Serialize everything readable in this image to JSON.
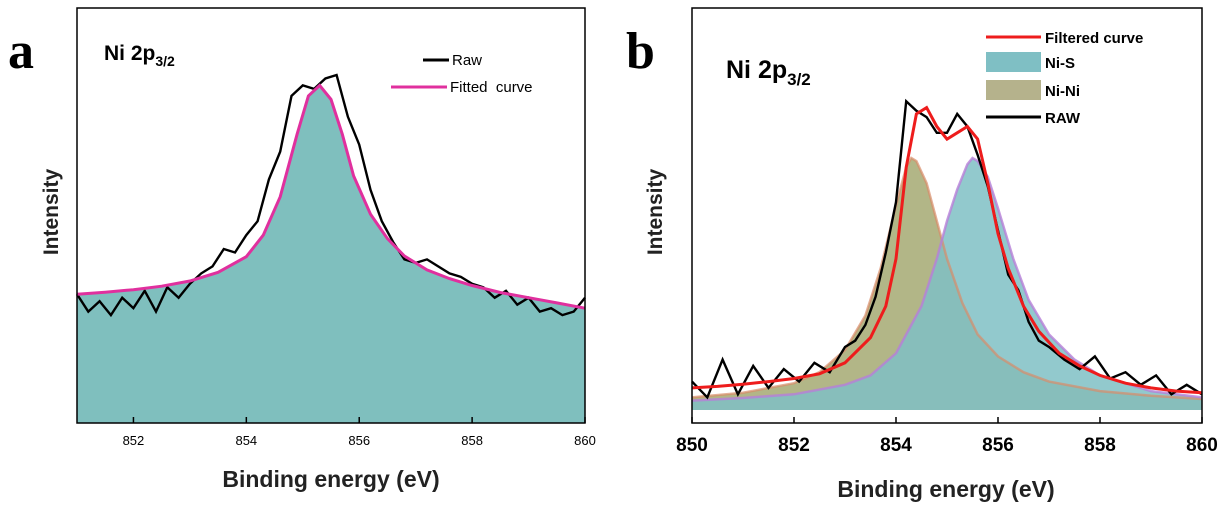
{
  "chart_data": [
    {
      "panel": "a",
      "type": "line",
      "title": "Ni 2p",
      "title_sub": "3/2",
      "xlabel": "Binding energy (eV)",
      "ylabel": "Intensity",
      "xlim": [
        851,
        860
      ],
      "ylim": [
        0,
        1
      ],
      "xticks": [
        852,
        854,
        856,
        858,
        860
      ],
      "legend_position": "top-right",
      "fill_color": "#7fbfbe",
      "series": [
        {
          "name": "Raw",
          "color": "#000000",
          "x": [
            851.0,
            851.2,
            851.4,
            851.6,
            851.8,
            852.0,
            852.2,
            852.4,
            852.6,
            852.8,
            853.0,
            853.2,
            853.4,
            853.6,
            853.8,
            854.0,
            854.2,
            854.4,
            854.6,
            854.8,
            855.0,
            855.2,
            855.4,
            855.6,
            855.8,
            856.0,
            856.2,
            856.4,
            856.6,
            856.8,
            857.0,
            857.2,
            857.4,
            857.6,
            857.8,
            858.0,
            858.2,
            858.4,
            858.6,
            858.8,
            859.0,
            859.2,
            859.4,
            859.6,
            859.8,
            860.0
          ],
          "y": [
            0.37,
            0.32,
            0.35,
            0.31,
            0.36,
            0.33,
            0.38,
            0.32,
            0.39,
            0.36,
            0.4,
            0.43,
            0.45,
            0.5,
            0.49,
            0.54,
            0.58,
            0.7,
            0.78,
            0.94,
            0.97,
            0.96,
            0.99,
            1.0,
            0.88,
            0.8,
            0.67,
            0.58,
            0.52,
            0.47,
            0.46,
            0.47,
            0.45,
            0.43,
            0.42,
            0.4,
            0.39,
            0.36,
            0.38,
            0.34,
            0.36,
            0.32,
            0.33,
            0.31,
            0.32,
            0.36
          ]
        },
        {
          "name": "Fitted  curve",
          "color": "#e0309e",
          "x": [
            851.0,
            851.5,
            852.0,
            852.5,
            853.0,
            853.5,
            854.0,
            854.3,
            854.6,
            854.9,
            855.1,
            855.3,
            855.5,
            855.7,
            855.9,
            856.2,
            856.5,
            856.8,
            857.2,
            857.6,
            858.0,
            858.5,
            859.0,
            859.5,
            860.0
          ],
          "y": [
            0.37,
            0.376,
            0.383,
            0.393,
            0.408,
            0.433,
            0.478,
            0.54,
            0.65,
            0.83,
            0.94,
            0.97,
            0.93,
            0.83,
            0.71,
            0.6,
            0.53,
            0.48,
            0.44,
            0.415,
            0.395,
            0.375,
            0.36,
            0.345,
            0.33
          ]
        }
      ]
    },
    {
      "panel": "b",
      "type": "line",
      "title": "Ni 2p",
      "title_sub": "3/2",
      "xlabel": "Binding energy (eV)",
      "ylabel": "Intensity",
      "xlim": [
        850,
        860
      ],
      "ylim": [
        0,
        1
      ],
      "xticks": [
        850,
        852,
        854,
        856,
        858,
        860
      ],
      "legend_position": "top-right",
      "baseline_fill_color": "#9ed16b",
      "series": [
        {
          "name": "Filtered curve",
          "color": "#ee1c1c",
          "x": [
            850.0,
            850.5,
            851.0,
            851.5,
            852.0,
            852.5,
            853.0,
            853.5,
            853.8,
            854.0,
            854.2,
            854.4,
            854.6,
            854.8,
            855.0,
            855.2,
            855.4,
            855.6,
            855.8,
            856.0,
            856.2,
            856.5,
            856.8,
            857.2,
            857.6,
            858.0,
            858.5,
            859.0,
            859.5,
            860.0
          ],
          "y": [
            0.07,
            0.075,
            0.082,
            0.09,
            0.1,
            0.115,
            0.15,
            0.23,
            0.33,
            0.48,
            0.77,
            0.94,
            0.96,
            0.9,
            0.86,
            0.88,
            0.9,
            0.86,
            0.72,
            0.56,
            0.45,
            0.33,
            0.25,
            0.18,
            0.14,
            0.11,
            0.085,
            0.07,
            0.06,
            0.055
          ]
        },
        {
          "name": "Ni-S",
          "color": "#7fbfc4",
          "x": [
            850.0,
            851.0,
            852.0,
            853.0,
            853.5,
            854.0,
            854.5,
            854.8,
            855.0,
            855.2,
            855.4,
            855.5,
            855.6,
            855.8,
            856.0,
            856.3,
            856.6,
            857.0,
            857.5,
            858.0,
            859.0,
            860.0
          ],
          "y": [
            0.03,
            0.038,
            0.05,
            0.08,
            0.11,
            0.18,
            0.33,
            0.48,
            0.6,
            0.7,
            0.78,
            0.8,
            0.79,
            0.74,
            0.64,
            0.48,
            0.35,
            0.24,
            0.16,
            0.11,
            0.06,
            0.04
          ]
        },
        {
          "name": "Ni-Ni",
          "color": "#b5b28c",
          "x": [
            850.0,
            851.0,
            852.0,
            852.5,
            853.0,
            853.4,
            853.7,
            854.0,
            854.2,
            854.3,
            854.4,
            854.6,
            854.8,
            855.0,
            855.3,
            855.6,
            856.0,
            856.5,
            857.0,
            858.0,
            859.0,
            860.0
          ],
          "y": [
            0.04,
            0.055,
            0.085,
            0.12,
            0.19,
            0.3,
            0.45,
            0.65,
            0.77,
            0.8,
            0.79,
            0.72,
            0.6,
            0.48,
            0.34,
            0.24,
            0.17,
            0.12,
            0.09,
            0.06,
            0.045,
            0.035
          ]
        },
        {
          "name": "RAW",
          "color": "#000000",
          "x": [
            850.0,
            850.3,
            850.6,
            850.9,
            851.2,
            851.5,
            851.8,
            852.1,
            852.4,
            852.7,
            853.0,
            853.2,
            853.4,
            853.6,
            853.8,
            854.0,
            854.2,
            854.4,
            854.6,
            854.8,
            855.0,
            855.2,
            855.4,
            855.6,
            855.8,
            856.0,
            856.2,
            856.4,
            856.6,
            856.8,
            857.0,
            857.3,
            857.6,
            857.9,
            858.2,
            858.5,
            858.8,
            859.1,
            859.4,
            859.7,
            860.0
          ],
          "y": [
            0.09,
            0.04,
            0.16,
            0.05,
            0.14,
            0.07,
            0.13,
            0.09,
            0.15,
            0.12,
            0.2,
            0.22,
            0.27,
            0.36,
            0.5,
            0.66,
            0.98,
            0.95,
            0.93,
            0.88,
            0.88,
            0.94,
            0.9,
            0.81,
            0.71,
            0.57,
            0.43,
            0.38,
            0.28,
            0.22,
            0.2,
            0.16,
            0.13,
            0.17,
            0.1,
            0.12,
            0.08,
            0.11,
            0.05,
            0.08,
            0.05
          ]
        }
      ]
    }
  ]
}
